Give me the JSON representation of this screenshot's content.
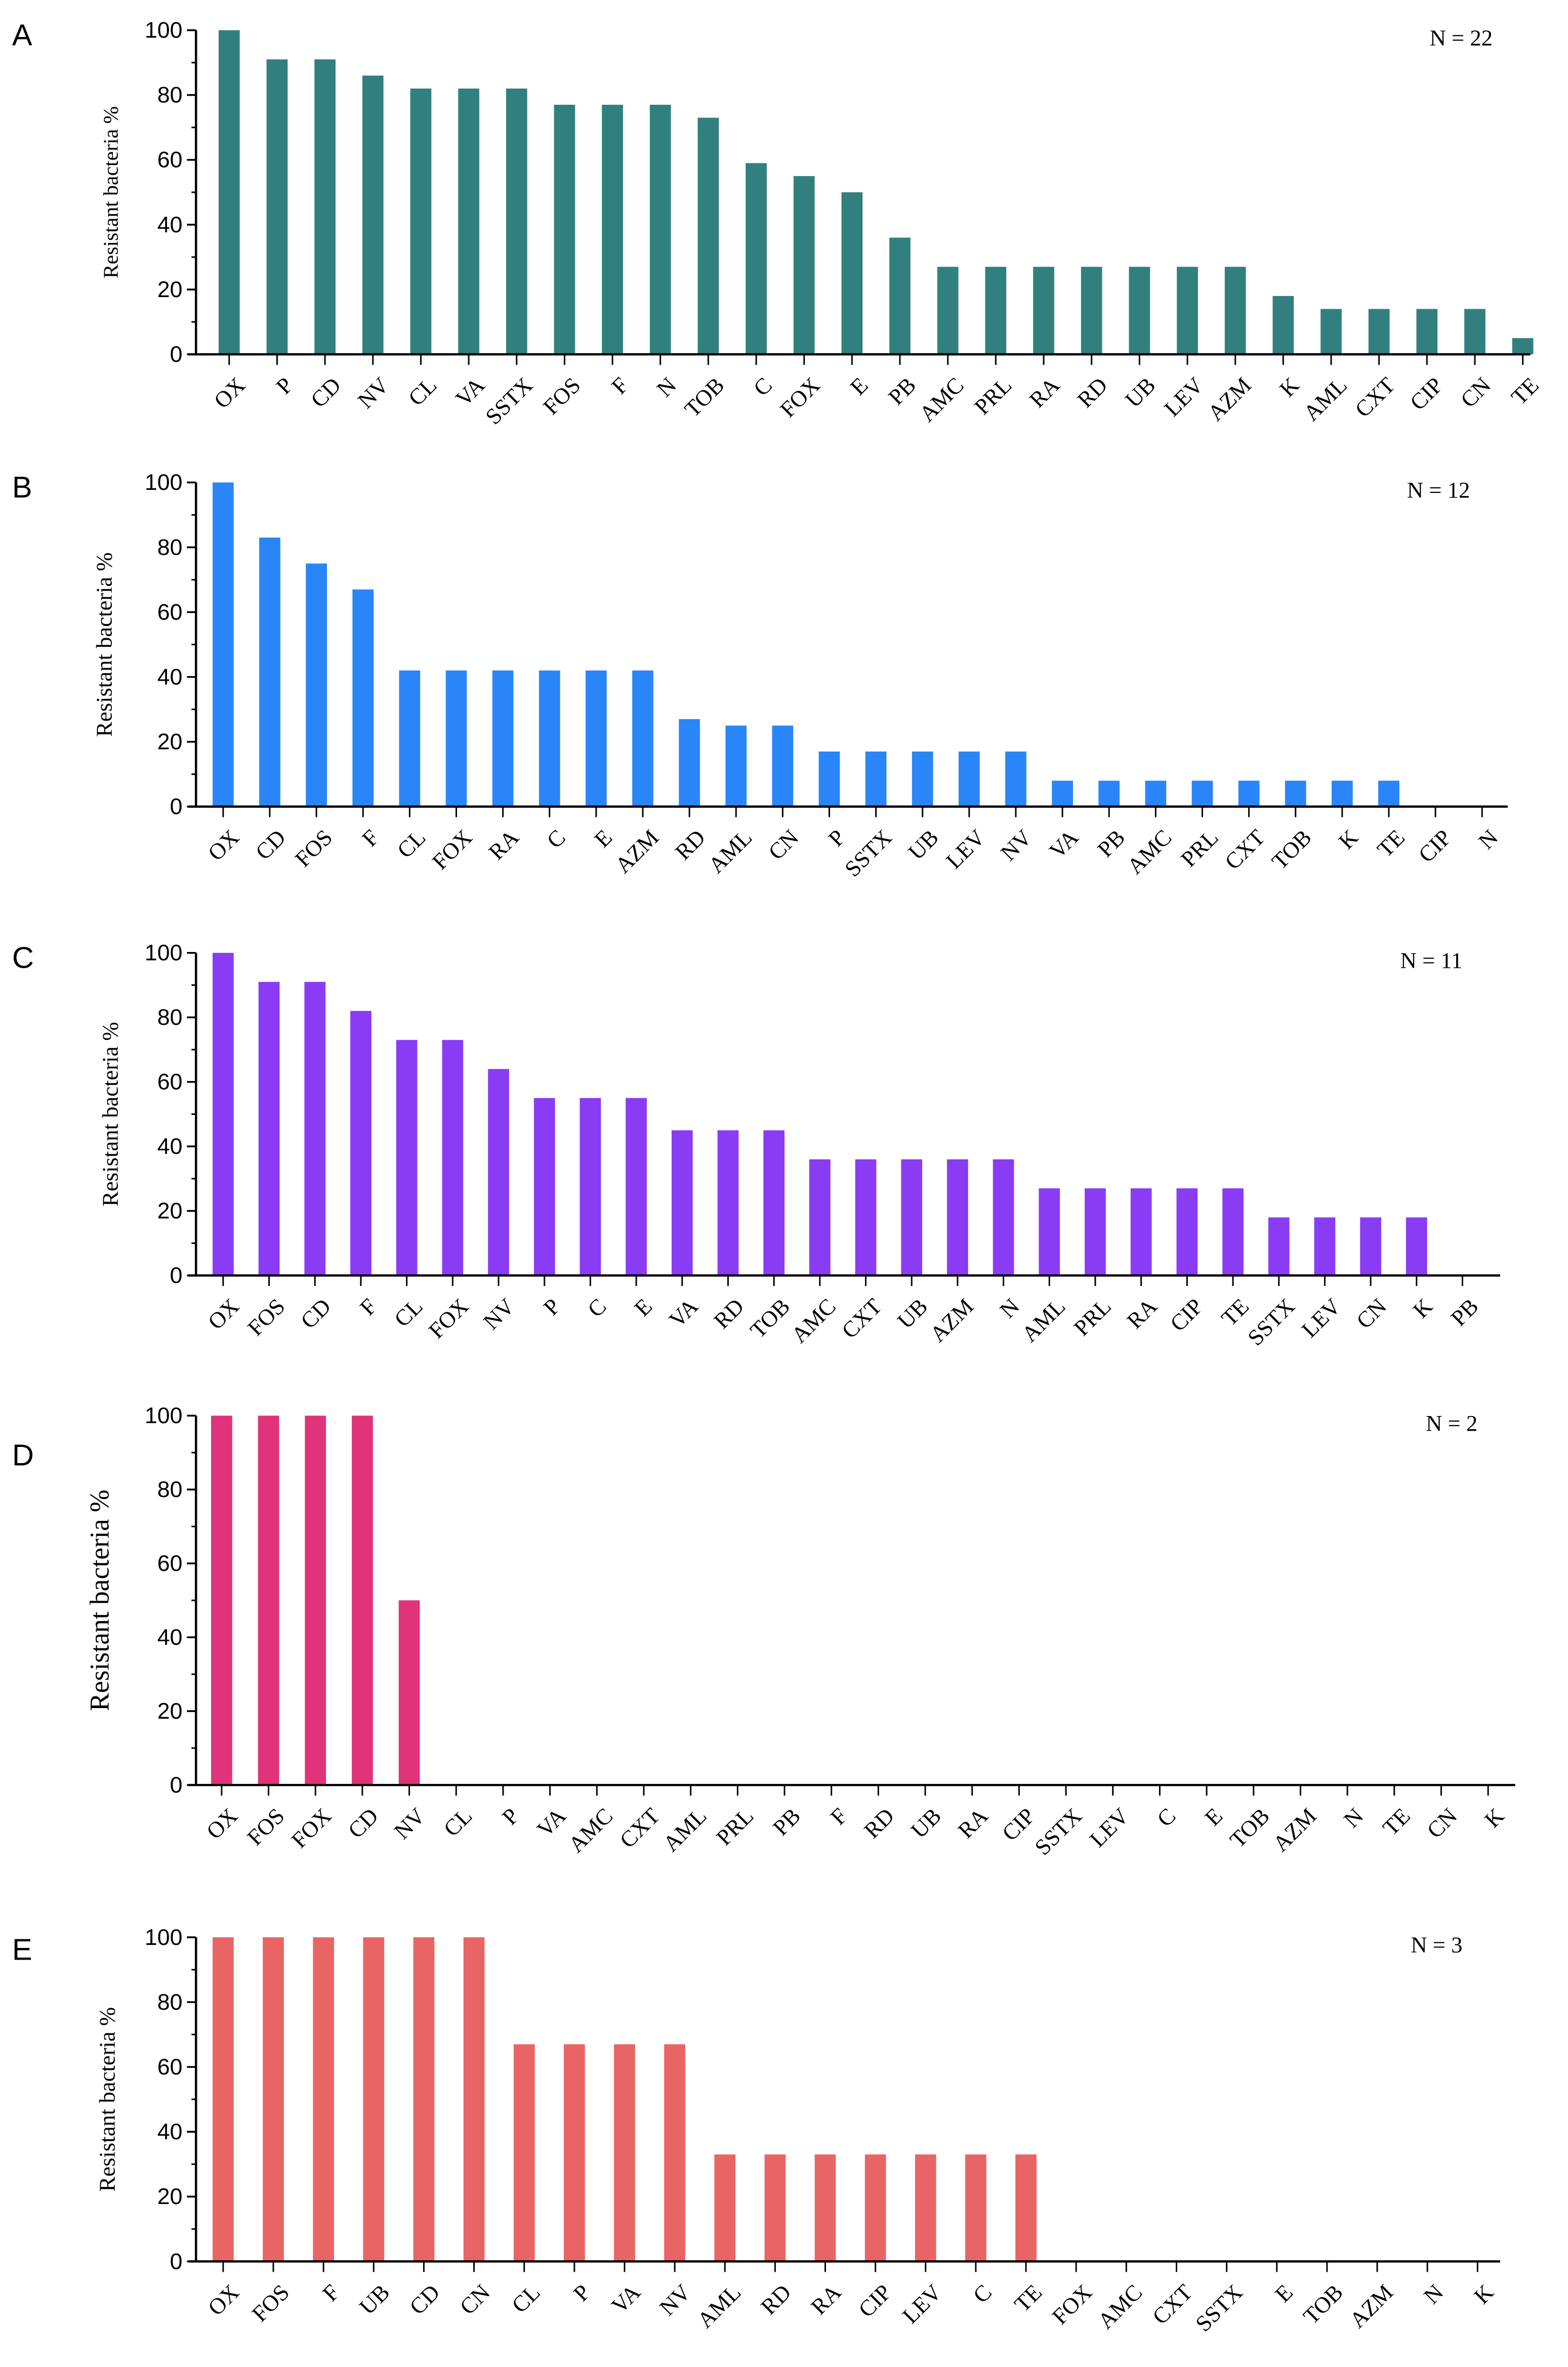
{
  "chart_data": [
    {
      "type": "bar",
      "panel_label": "A",
      "annotation": "N = 22",
      "ylabel": "Resistant bacteria %",
      "ylim": [
        0,
        100
      ],
      "yticks": [
        0,
        20,
        40,
        60,
        80,
        100
      ],
      "color": "#31807f",
      "categories": [
        "OX",
        "P",
        "CD",
        "NV",
        "CL",
        "VA",
        "SSTX",
        "FOS",
        "F",
        "N",
        "TOB",
        "C",
        "FOX",
        "E",
        "PB",
        "AMC",
        "PRL",
        "RA",
        "RD",
        "UB",
        "LEV",
        "AZM",
        "K",
        "AML",
        "CXT",
        "CIP",
        "CN",
        "TE"
      ],
      "values": [
        100,
        91,
        91,
        86,
        82,
        82,
        82,
        77,
        77,
        77,
        73,
        59,
        55,
        50,
        36,
        27,
        27,
        27,
        27,
        27,
        27,
        27,
        18,
        14,
        14,
        14,
        14,
        5
      ]
    },
    {
      "type": "bar",
      "panel_label": "B",
      "annotation": "N = 12",
      "ylabel": "Resistant bacteria %",
      "ylim": [
        0,
        100
      ],
      "yticks": [
        0,
        20,
        40,
        60,
        80,
        100
      ],
      "color": "#2a86f8",
      "categories": [
        "OX",
        "CD",
        "FOS",
        "F",
        "CL",
        "FOX",
        "RA",
        "C",
        "E",
        "AZM",
        "RD",
        "AML",
        "CN",
        "P",
        "SSTX",
        "UB",
        "LEV",
        "NV",
        "VA",
        "PB",
        "AMC",
        "PRL",
        "CXT",
        "TOB",
        "K",
        "TE",
        "CIP",
        "N"
      ],
      "values": [
        100,
        83,
        75,
        67,
        42,
        42,
        42,
        42,
        42,
        42,
        27,
        25,
        25,
        17,
        17,
        17,
        17,
        17,
        8,
        8,
        8,
        8,
        8,
        8,
        8,
        8,
        0,
        0
      ]
    },
    {
      "type": "bar",
      "panel_label": "C",
      "annotation": "N = 11",
      "ylabel": "Resistant bacteria %",
      "ylim": [
        0,
        100
      ],
      "yticks": [
        0,
        20,
        40,
        60,
        80,
        100
      ],
      "color": "#8a3cf5",
      "categories": [
        "OX",
        "FOS",
        "CD",
        "F",
        "CL",
        "FOX",
        "NV",
        "P",
        "C",
        "E",
        "VA",
        "RD",
        "TOB",
        "AMC",
        "CXT",
        "UB",
        "AZM",
        "N",
        "AML",
        "PRL",
        "RA",
        "CIP",
        "TE",
        "SSTX",
        "LEV",
        "CN",
        "K",
        "PB"
      ],
      "values": [
        100,
        91,
        91,
        82,
        73,
        73,
        64,
        55,
        55,
        55,
        45,
        45,
        45,
        36,
        36,
        36,
        36,
        36,
        27,
        27,
        27,
        27,
        27,
        18,
        18,
        18,
        18,
        0
      ]
    },
    {
      "type": "bar",
      "panel_label": "D",
      "annotation": "N = 2",
      "ylabel": "Resistant bacteria %",
      "ylim": [
        0,
        100
      ],
      "yticks": [
        0,
        20,
        40,
        60,
        80,
        100
      ],
      "color": "#e0337a",
      "categories": [
        "OX",
        "FOS",
        "FOX",
        "CD",
        "NV",
        "CL",
        "P",
        "VA",
        "AMC",
        "CXT",
        "AML",
        "PRL",
        "PB",
        "F",
        "RD",
        "UB",
        "RA",
        "CIP",
        "SSTX",
        "LEV",
        "C",
        "E",
        "TOB",
        "AZM",
        "N",
        "TE",
        "CN",
        "K"
      ],
      "values": [
        100,
        100,
        100,
        100,
        50,
        0,
        0,
        0,
        0,
        0,
        0,
        0,
        0,
        0,
        0,
        0,
        0,
        0,
        0,
        0,
        0,
        0,
        0,
        0,
        0,
        0,
        0,
        0
      ]
    },
    {
      "type": "bar",
      "panel_label": "E",
      "annotation": "N = 3",
      "ylabel": "Resistant bacteria %",
      "ylim": [
        0,
        100
      ],
      "yticks": [
        0,
        20,
        40,
        60,
        80,
        100
      ],
      "color": "#e96565",
      "categories": [
        "OX",
        "FOS",
        "F",
        "UB",
        "CD",
        "CN",
        "CL",
        "P",
        "VA",
        "NV",
        "AML",
        "RD",
        "RA",
        "CIP",
        "LEV",
        "C",
        "TE",
        "FOX",
        "AMC",
        "CXT",
        "SSTX",
        "E",
        "TOB",
        "AZM",
        "N",
        "K"
      ],
      "values": [
        100,
        100,
        100,
        100,
        100,
        100,
        67,
        67,
        67,
        67,
        33,
        33,
        33,
        33,
        33,
        33,
        33,
        0,
        0,
        0,
        0,
        0,
        0,
        0,
        0,
        0
      ]
    }
  ]
}
